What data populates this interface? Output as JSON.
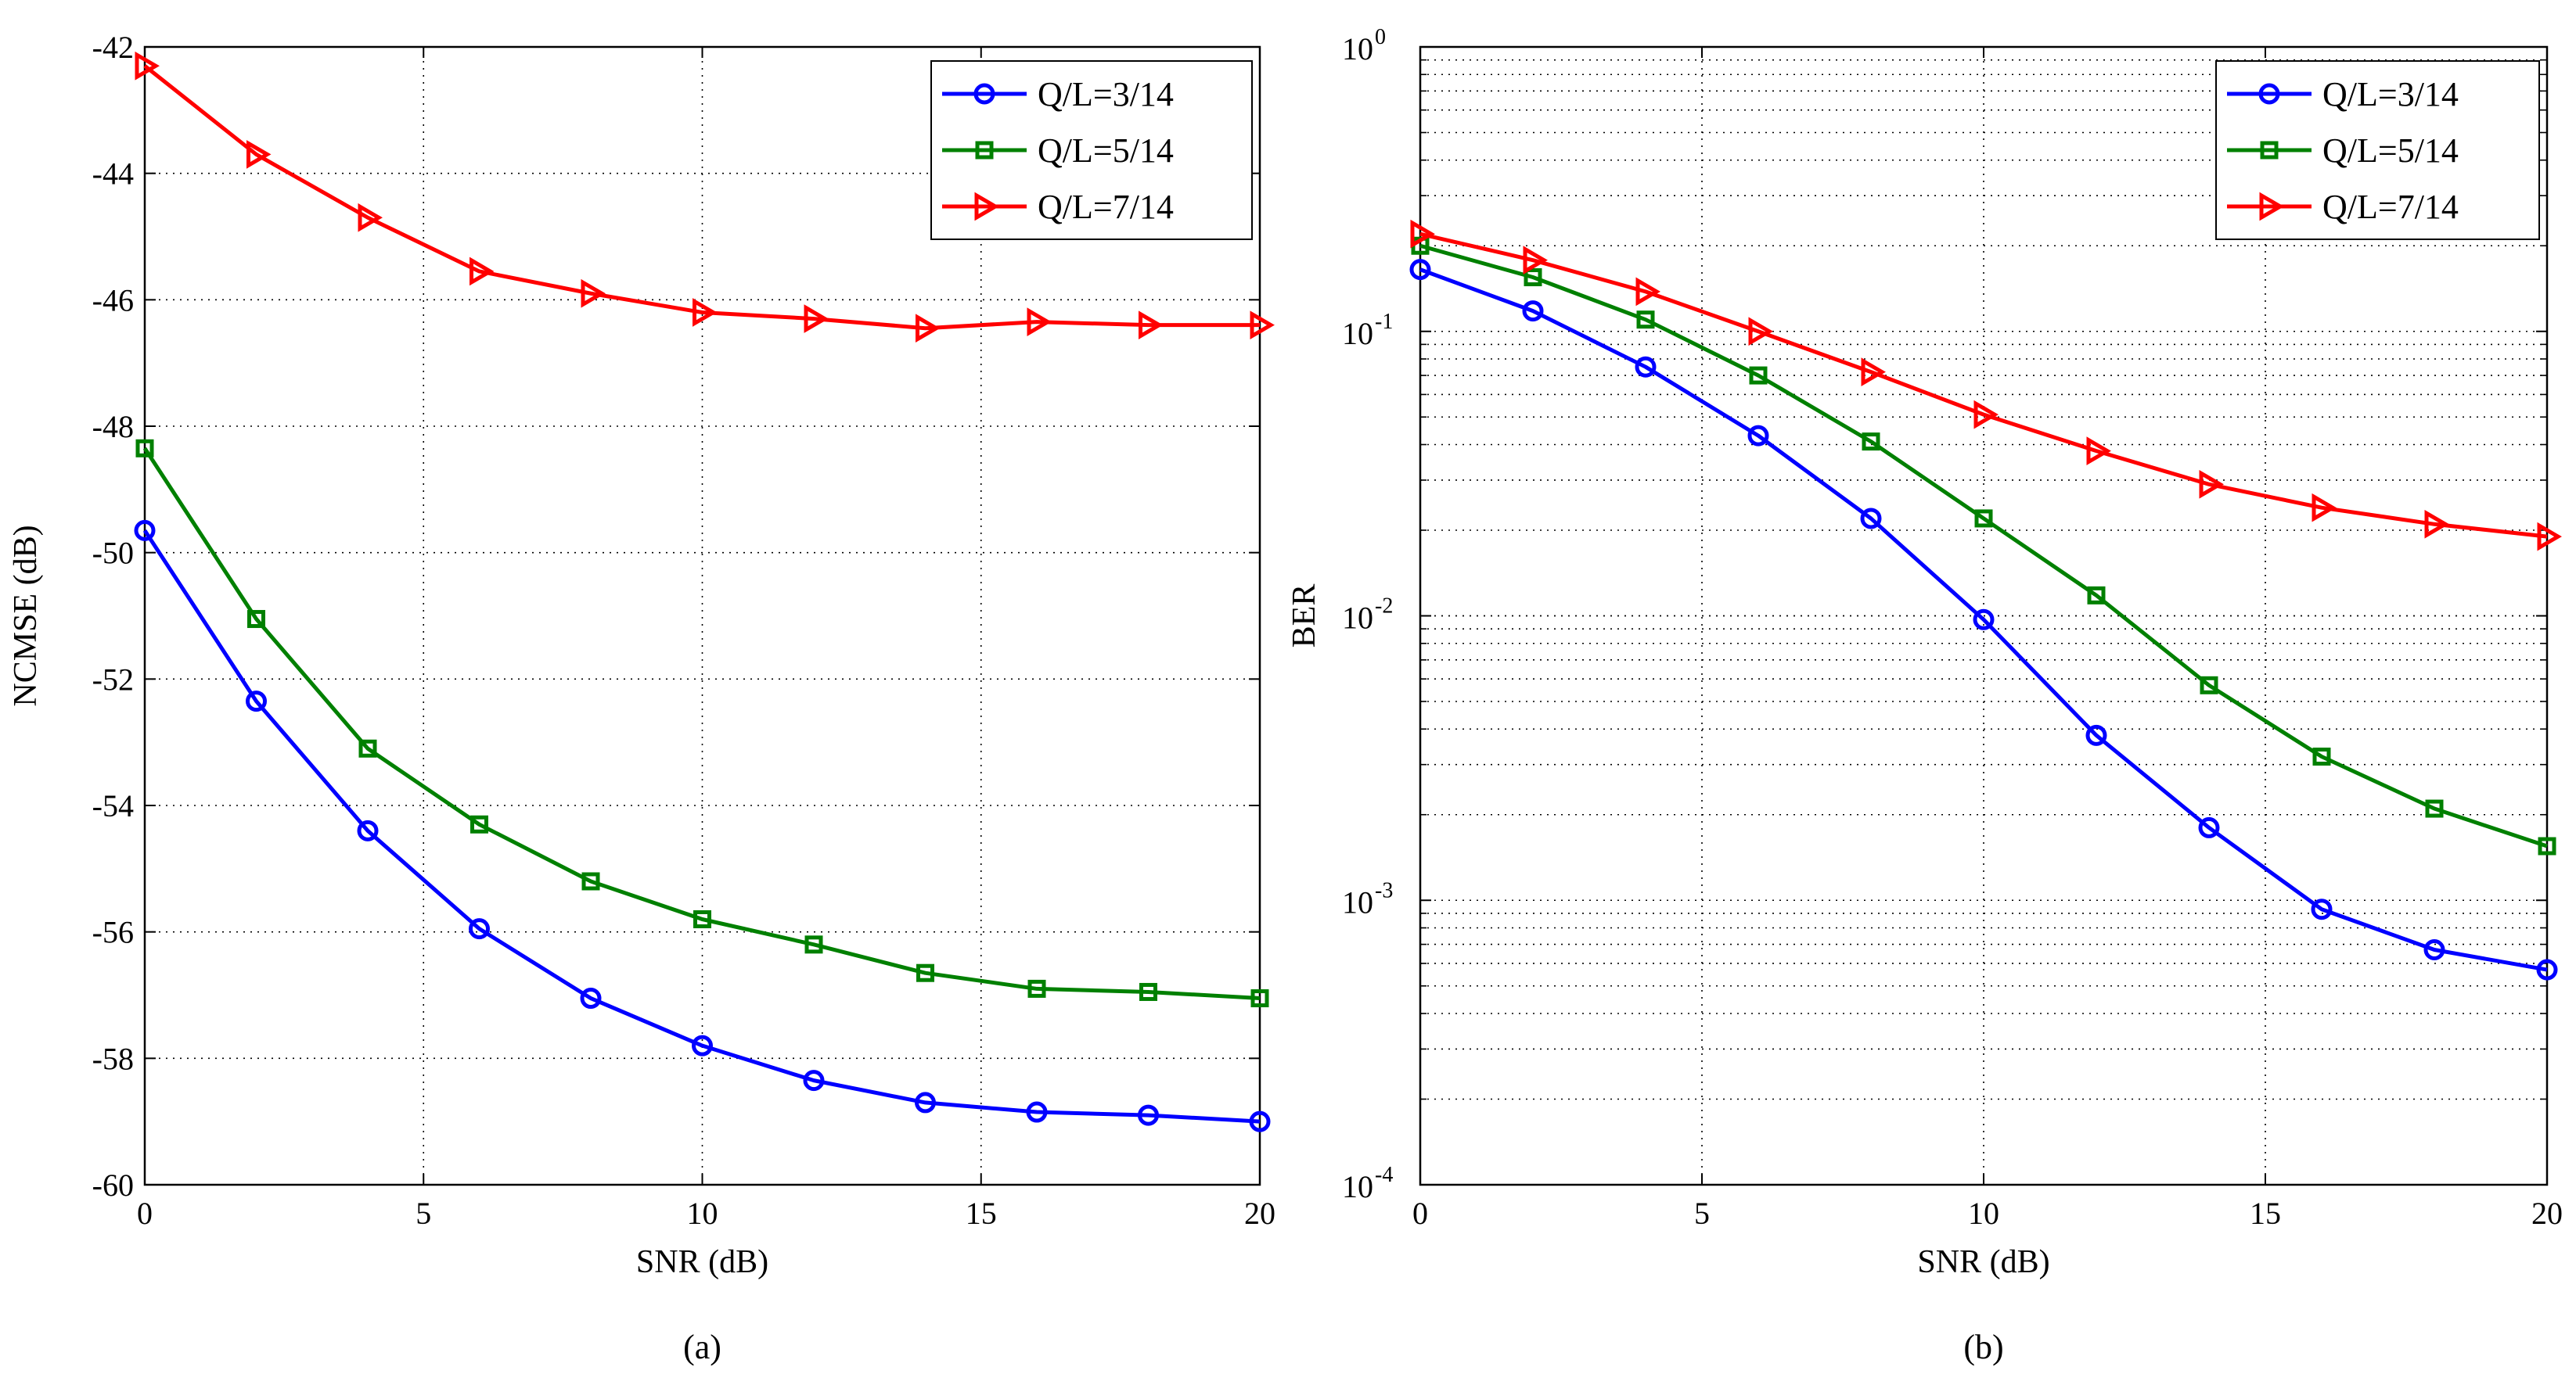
{
  "chart_data": [
    {
      "type": "line",
      "caption": "(a)",
      "xlabel": "SNR (dB)",
      "ylabel": "NCMSE (dB)",
      "yscale": "linear",
      "xlim": [
        0,
        20
      ],
      "ylim": [
        -60,
        -42
      ],
      "xticks": [
        "0",
        "5",
        "10",
        "15",
        "20"
      ],
      "yticks": [
        "-60",
        "-58",
        "-56",
        "-54",
        "-52",
        "-50",
        "-48",
        "-46",
        "-44",
        "-42"
      ],
      "grid": true,
      "legend_position": "top-right",
      "x": [
        0,
        2,
        4,
        6,
        8,
        10,
        12,
        14,
        16,
        18,
        20
      ],
      "series": [
        {
          "name": "Q/L=3/14",
          "color": "#0000ff",
          "marker": "circle",
          "values": [
            -49.65,
            -52.35,
            -54.4,
            -55.95,
            -57.05,
            -57.8,
            -58.35,
            -58.7,
            -58.85,
            -58.9,
            -59.0
          ]
        },
        {
          "name": "Q/L=5/14",
          "color": "#008000",
          "marker": "square",
          "values": [
            -48.35,
            -51.05,
            -53.1,
            -54.3,
            -55.2,
            -55.8,
            -56.2,
            -56.65,
            -56.9,
            -56.95,
            -57.05
          ]
        },
        {
          "name": "Q/L=7/14",
          "color": "#ff0000",
          "marker": "triangle-right",
          "values": [
            -42.3,
            -43.7,
            -44.7,
            -45.55,
            -45.9,
            -46.2,
            -46.3,
            -46.45,
            -46.35,
            -46.4,
            -46.4
          ]
        }
      ]
    },
    {
      "type": "line",
      "caption": "(b)",
      "xlabel": "SNR (dB)",
      "ylabel": "BER",
      "yscale": "log",
      "xlim": [
        0,
        20
      ],
      "ylim": [
        0.0001,
        1
      ],
      "xticks": [
        "0",
        "5",
        "10",
        "15",
        "20"
      ],
      "yticks": [
        {
          "base": "10",
          "exp": "-4"
        },
        {
          "base": "10",
          "exp": "-3"
        },
        {
          "base": "10",
          "exp": "-2"
        },
        {
          "base": "10",
          "exp": "-1"
        },
        {
          "base": "10",
          "exp": "0"
        }
      ],
      "grid": true,
      "legend_position": "top-right",
      "x": [
        0,
        2,
        4,
        6,
        8,
        10,
        12,
        14,
        16,
        18,
        20
      ],
      "series": [
        {
          "name": "Q/L=3/14",
          "color": "#0000ff",
          "marker": "circle",
          "values": [
            0.165,
            0.118,
            0.075,
            0.043,
            0.022,
            0.0097,
            0.0038,
            0.0018,
            0.00093,
            0.00067,
            0.00057
          ]
        },
        {
          "name": "Q/L=5/14",
          "color": "#008000",
          "marker": "square",
          "values": [
            0.2,
            0.155,
            0.11,
            0.07,
            0.041,
            0.022,
            0.0118,
            0.0057,
            0.0032,
            0.0021,
            0.00155
          ]
        },
        {
          "name": "Q/L=7/14",
          "color": "#ff0000",
          "marker": "triangle-right",
          "values": [
            0.22,
            0.178,
            0.138,
            0.1,
            0.072,
            0.051,
            0.038,
            0.029,
            0.024,
            0.021,
            0.019
          ]
        }
      ]
    }
  ]
}
